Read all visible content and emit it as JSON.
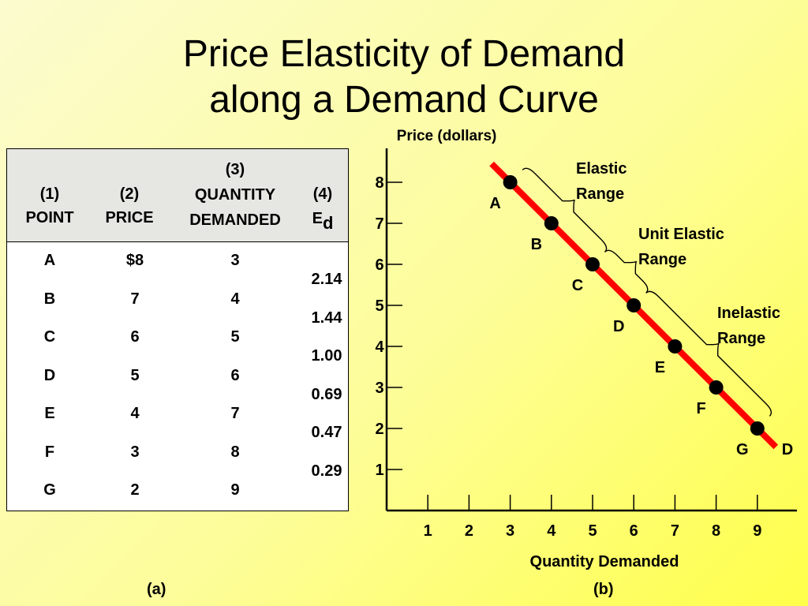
{
  "title": {
    "line1": "Price Elasticity of Demand",
    "line2": "along a Demand Curve"
  },
  "panels": {
    "a": "(a)",
    "b": "(b)"
  },
  "table": {
    "col1": [
      "(1)",
      "POINT"
    ],
    "col2": [
      "(2)",
      "PRICE"
    ],
    "col3": [
      "(3)",
      "QUANTITY",
      "DEMANDED"
    ],
    "col4": [
      "(4)",
      "E",
      "d"
    ],
    "rows": [
      {
        "point": "A",
        "price": "$8",
        "quantity": "3"
      },
      {
        "point": "B",
        "price": "7",
        "quantity": "4"
      },
      {
        "point": "C",
        "price": "6",
        "quantity": "5"
      },
      {
        "point": "D",
        "price": "5",
        "quantity": "6"
      },
      {
        "point": "E",
        "price": "4",
        "quantity": "7"
      },
      {
        "point": "F",
        "price": "3",
        "quantity": "8"
      },
      {
        "point": "G",
        "price": "2",
        "quantity": "9"
      }
    ],
    "elasticities": [
      "2.14",
      "1.44",
      "1.00",
      "0.69",
      "0.47",
      "0.29"
    ]
  },
  "chart_data": {
    "type": "line",
    "title": "",
    "xlabel": "Quantity Demanded",
    "ylabel": "Price (dollars)",
    "x_ticks": [
      1,
      2,
      3,
      4,
      5,
      6,
      7,
      8,
      9
    ],
    "y_ticks": [
      1,
      2,
      3,
      4,
      5,
      6,
      7,
      8
    ],
    "series": [
      {
        "name": "D",
        "color": "#ff0000",
        "points": [
          {
            "label": "A",
            "x": 3,
            "y": 8
          },
          {
            "label": "B",
            "x": 4,
            "y": 7
          },
          {
            "label": "C",
            "x": 5,
            "y": 6
          },
          {
            "label": "D",
            "x": 6,
            "y": 5
          },
          {
            "label": "E",
            "x": 7,
            "y": 4
          },
          {
            "label": "F",
            "x": 8,
            "y": 3
          },
          {
            "label": "G",
            "x": 9,
            "y": 2
          }
        ]
      }
    ],
    "ranges": [
      {
        "label": [
          "Elastic",
          "Range"
        ],
        "from_point": "A",
        "to_point": "C"
      },
      {
        "label": [
          "Unit Elastic",
          "Range"
        ],
        "from_point": "C",
        "to_point": "D"
      },
      {
        "label": [
          "Inelastic",
          "Range"
        ],
        "from_point": "D",
        "to_point": "G"
      }
    ],
    "curve_label": "D"
  }
}
